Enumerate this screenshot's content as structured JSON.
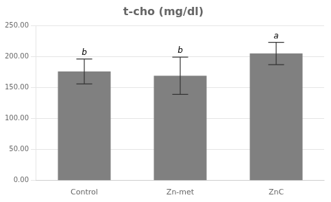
{
  "chart_data": {
    "type": "bar",
    "title": "t-cho (mg/dl)",
    "categories": [
      "Control",
      "Zn-met",
      "ZnC"
    ],
    "values": [
      176.0,
      169.0,
      205.0
    ],
    "errors": [
      20.0,
      30.0,
      18.0
    ],
    "annotations": [
      "b",
      "b",
      "a"
    ],
    "color": "#808080",
    "ylim": [
      0,
      250
    ],
    "yticks": [
      {
        "value": 0,
        "label": "0.00"
      },
      {
        "value": 50,
        "label": "50.00"
      },
      {
        "value": 100,
        "label": "100.00"
      },
      {
        "value": 150,
        "label": "150.00"
      },
      {
        "value": 200,
        "label": "200.00"
      },
      {
        "value": 250,
        "label": "250.00"
      }
    ],
    "grid": true
  }
}
